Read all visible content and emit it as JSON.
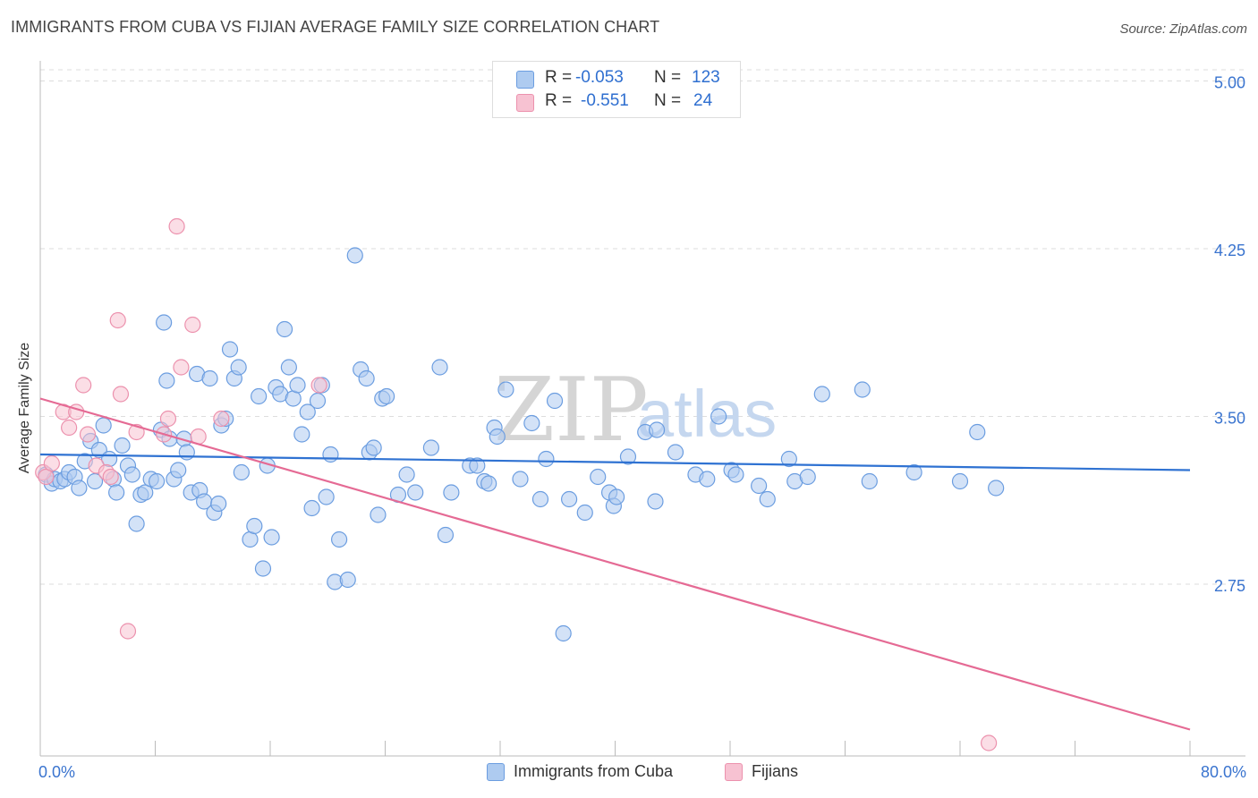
{
  "title": "IMMIGRANTS FROM CUBA VS FIJIAN AVERAGE FAMILY SIZE CORRELATION CHART",
  "source": "Source: ZipAtlas.com",
  "watermark": {
    "zip": "ZIP",
    "atlas": "atlas"
  },
  "colors": {
    "blue_fill": "#aecbf0",
    "blue_stroke": "#6b9de0",
    "blue_line": "#2f72d2",
    "pink_fill": "#f7c2d2",
    "pink_stroke": "#ec91ad",
    "pink_line": "#e56a94",
    "axis_text": "#3a74cf",
    "grid": "#dddddd"
  },
  "legend": {
    "rows": [
      {
        "r_label": "R =",
        "r_value": "-0.053",
        "n_label": "N =",
        "n_value": "123"
      },
      {
        "r_label": "R =",
        "r_value": "-0.551",
        "n_label": "N =",
        "n_value": "24"
      }
    ]
  },
  "bottom_legend": {
    "series1": "Immigrants from Cuba",
    "series2": "Fijians"
  },
  "chart_data": {
    "type": "scatter",
    "xlabel": "",
    "ylabel": "Average Family Size",
    "xlim": [
      0,
      80
    ],
    "ylim": [
      2.05,
      5.05
    ],
    "x_tick_labels": {
      "left": "0.0%",
      "right": "80.0%"
    },
    "y_ticks": [
      {
        "value": 5.0,
        "label": "5.00"
      },
      {
        "value": 4.25,
        "label": "4.25"
      },
      {
        "value": 3.5,
        "label": "3.50"
      },
      {
        "value": 2.75,
        "label": "2.75"
      }
    ],
    "series": [
      {
        "name": "Immigrants from Cuba",
        "trend": {
          "x0": 0,
          "y0": 3.33,
          "x1": 80,
          "y1": 3.26
        },
        "points": [
          [
            0.4,
            3.24
          ],
          [
            0.8,
            3.2
          ],
          [
            1.0,
            3.22
          ],
          [
            1.4,
            3.21
          ],
          [
            1.7,
            3.22
          ],
          [
            2.0,
            3.25
          ],
          [
            2.4,
            3.23
          ],
          [
            2.7,
            3.18
          ],
          [
            3.1,
            3.3
          ],
          [
            3.5,
            3.39
          ],
          [
            3.8,
            3.21
          ],
          [
            4.1,
            3.35
          ],
          [
            4.4,
            3.46
          ],
          [
            4.8,
            3.31
          ],
          [
            5.1,
            3.22
          ],
          [
            5.3,
            3.16
          ],
          [
            5.7,
            3.37
          ],
          [
            6.1,
            3.28
          ],
          [
            6.4,
            3.24
          ],
          [
            6.7,
            3.02
          ],
          [
            7.0,
            3.15
          ],
          [
            7.3,
            3.16
          ],
          [
            7.7,
            3.22
          ],
          [
            8.1,
            3.21
          ],
          [
            8.4,
            3.44
          ],
          [
            8.6,
            3.92
          ],
          [
            8.8,
            3.66
          ],
          [
            9.0,
            3.4
          ],
          [
            9.3,
            3.22
          ],
          [
            9.6,
            3.26
          ],
          [
            10.0,
            3.4
          ],
          [
            10.2,
            3.34
          ],
          [
            10.5,
            3.16
          ],
          [
            10.9,
            3.69
          ],
          [
            11.1,
            3.17
          ],
          [
            11.4,
            3.12
          ],
          [
            11.8,
            3.67
          ],
          [
            12.1,
            3.07
          ],
          [
            12.4,
            3.11
          ],
          [
            12.6,
            3.46
          ],
          [
            12.9,
            3.49
          ],
          [
            13.2,
            3.8
          ],
          [
            13.5,
            3.67
          ],
          [
            13.8,
            3.72
          ],
          [
            14.0,
            3.25
          ],
          [
            14.6,
            2.95
          ],
          [
            14.9,
            3.01
          ],
          [
            15.2,
            3.59
          ],
          [
            15.5,
            2.82
          ],
          [
            15.8,
            3.28
          ],
          [
            16.1,
            2.96
          ],
          [
            16.4,
            3.63
          ],
          [
            16.7,
            3.6
          ],
          [
            17.0,
            3.89
          ],
          [
            17.3,
            3.72
          ],
          [
            17.6,
            3.58
          ],
          [
            17.9,
            3.64
          ],
          [
            18.2,
            3.42
          ],
          [
            18.6,
            3.52
          ],
          [
            18.9,
            3.09
          ],
          [
            19.3,
            3.57
          ],
          [
            19.6,
            3.64
          ],
          [
            19.9,
            3.14
          ],
          [
            20.2,
            3.33
          ],
          [
            20.5,
            2.76
          ],
          [
            20.8,
            2.95
          ],
          [
            21.4,
            2.77
          ],
          [
            21.9,
            4.22
          ],
          [
            22.3,
            3.71
          ],
          [
            22.7,
            3.67
          ],
          [
            22.9,
            3.34
          ],
          [
            23.2,
            3.36
          ],
          [
            23.5,
            3.06
          ],
          [
            23.8,
            3.58
          ],
          [
            24.1,
            3.59
          ],
          [
            24.9,
            3.15
          ],
          [
            25.5,
            3.24
          ],
          [
            26.1,
            3.16
          ],
          [
            27.2,
            3.36
          ],
          [
            27.8,
            3.72
          ],
          [
            28.2,
            2.97
          ],
          [
            28.6,
            3.16
          ],
          [
            29.9,
            3.28
          ],
          [
            30.4,
            3.28
          ],
          [
            30.9,
            3.21
          ],
          [
            31.2,
            3.2
          ],
          [
            31.6,
            3.45
          ],
          [
            31.8,
            3.41
          ],
          [
            32.4,
            3.62
          ],
          [
            33.4,
            3.22
          ],
          [
            34.2,
            3.47
          ],
          [
            34.8,
            3.13
          ],
          [
            35.2,
            3.31
          ],
          [
            35.8,
            3.57
          ],
          [
            36.4,
            2.53
          ],
          [
            36.8,
            3.13
          ],
          [
            37.9,
            3.07
          ],
          [
            38.8,
            3.23
          ],
          [
            39.6,
            3.16
          ],
          [
            39.9,
            3.1
          ],
          [
            40.1,
            3.14
          ],
          [
            40.9,
            3.32
          ],
          [
            42.1,
            3.43
          ],
          [
            42.8,
            3.12
          ],
          [
            42.9,
            3.44
          ],
          [
            44.2,
            3.34
          ],
          [
            45.6,
            3.24
          ],
          [
            46.4,
            3.22
          ],
          [
            47.2,
            3.5
          ],
          [
            48.1,
            3.26
          ],
          [
            48.4,
            3.24
          ],
          [
            50.0,
            3.19
          ],
          [
            50.6,
            3.13
          ],
          [
            52.1,
            3.31
          ],
          [
            52.5,
            3.21
          ],
          [
            53.4,
            3.23
          ],
          [
            54.4,
            3.6
          ],
          [
            57.2,
            3.62
          ],
          [
            57.7,
            3.21
          ],
          [
            60.8,
            3.25
          ],
          [
            64.0,
            3.21
          ],
          [
            65.2,
            3.43
          ],
          [
            66.5,
            3.18
          ]
        ]
      },
      {
        "name": "Fijians",
        "trend": {
          "x0": 0,
          "y0": 3.58,
          "x1": 80,
          "y1": 2.1
        },
        "points": [
          [
            0.2,
            3.25
          ],
          [
            0.4,
            3.23
          ],
          [
            0.8,
            3.29
          ],
          [
            1.6,
            3.52
          ],
          [
            2.0,
            3.45
          ],
          [
            2.5,
            3.52
          ],
          [
            3.0,
            3.64
          ],
          [
            3.3,
            3.42
          ],
          [
            3.9,
            3.28
          ],
          [
            4.6,
            3.25
          ],
          [
            4.9,
            3.23
          ],
          [
            5.4,
            3.93
          ],
          [
            5.6,
            3.6
          ],
          [
            6.1,
            2.54
          ],
          [
            6.7,
            3.43
          ],
          [
            8.6,
            3.42
          ],
          [
            8.9,
            3.49
          ],
          [
            9.5,
            4.35
          ],
          [
            9.8,
            3.72
          ],
          [
            10.6,
            3.91
          ],
          [
            11.0,
            3.41
          ],
          [
            12.6,
            3.49
          ],
          [
            19.4,
            3.64
          ],
          [
            66.0,
            2.04
          ]
        ]
      }
    ]
  }
}
